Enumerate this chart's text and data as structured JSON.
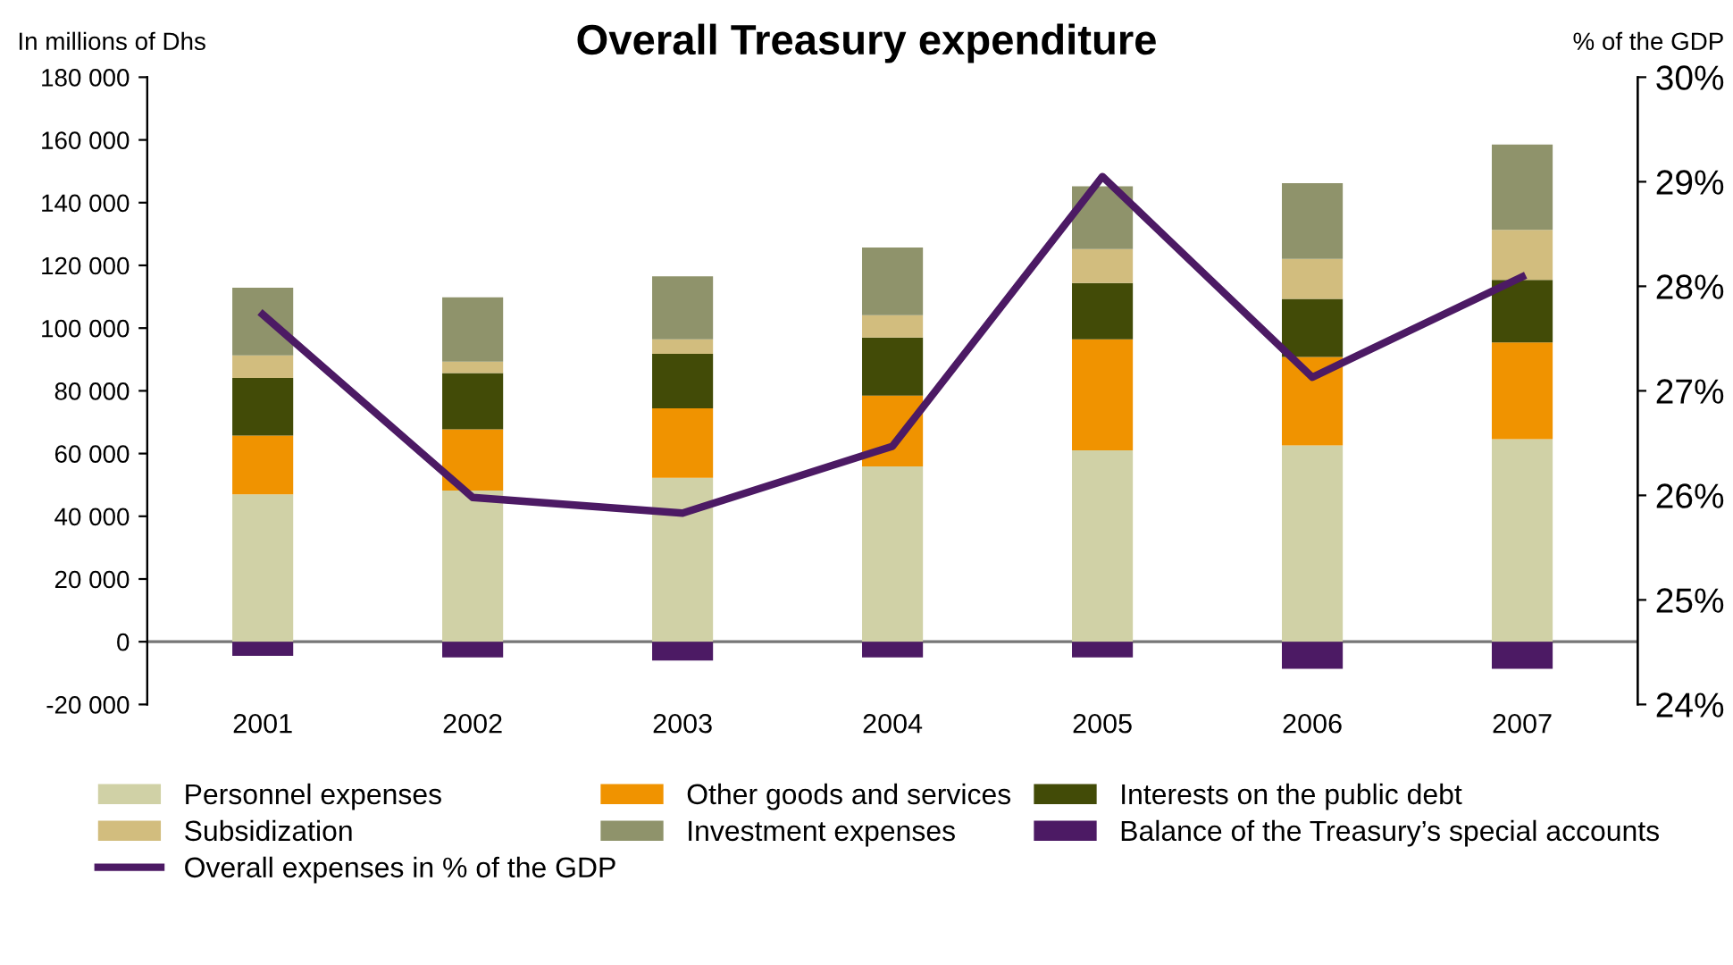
{
  "chart_data": {
    "type": "bar",
    "title": "Overall Treasury expenditure",
    "ylabel": "In millions of Dhs",
    "y2label": "% of the GDP",
    "categories": [
      "2001",
      "2002",
      "2003",
      "2004",
      "2005",
      "2006",
      "2007"
    ],
    "stacked": true,
    "legend": "bottom",
    "grid": false,
    "ref_lines": [
      {
        "axis": "y",
        "value": 0,
        "color": "#777777"
      }
    ],
    "series": [
      {
        "name": "Personnel expenses",
        "color": "#d0d1a6",
        "values": [
          47000,
          48200,
          52300,
          55900,
          61000,
          62600,
          64600
        ]
      },
      {
        "name": "Other goods and services",
        "color": "#f09300",
        "values": [
          18700,
          19500,
          22100,
          22600,
          35400,
          28200,
          30800
        ]
      },
      {
        "name": "Interests on the public debt",
        "color": "#424b07",
        "values": [
          18400,
          18000,
          17400,
          18500,
          18000,
          18500,
          20000
        ]
      },
      {
        "name": "Subsidization",
        "color": "#d2bd7e",
        "values": [
          7200,
          3600,
          4600,
          7100,
          10800,
          12800,
          15900
        ]
      },
      {
        "name": "Investment expenses",
        "color": "#8f936b",
        "values": [
          21600,
          20500,
          20100,
          21600,
          20000,
          24100,
          27200
        ]
      },
      {
        "name": "Balance of the Treasury’s special accounts",
        "color": "#4c1a64",
        "values": [
          -4500,
          -5000,
          -6000,
          -5000,
          -5000,
          -8600,
          -8600
        ]
      },
      {
        "name": "Overall expenses in % of the GDP",
        "color": "#4c1a64",
        "type": "line",
        "axis": "y2",
        "values": [
          27.73,
          25.98,
          25.83,
          26.47,
          29.05,
          27.13,
          28.09
        ]
      }
    ],
    "ylim": [
      -20000,
      180000
    ],
    "yticks": [
      {
        "value": -20000,
        "label": "-20 000"
      },
      0,
      {
        "value": 20000,
        "label": "20 000"
      },
      {
        "value": 40000,
        "label": "40 000"
      },
      {
        "value": 60000,
        "label": "60 000"
      },
      {
        "value": 80000,
        "label": "80 000"
      },
      {
        "value": 100000,
        "label": "100 000"
      },
      {
        "value": 120000,
        "label": "120 000"
      },
      {
        "value": 140000,
        "label": "140 000"
      },
      {
        "value": 160000,
        "label": "160 000"
      },
      {
        "value": 180000,
        "label": "180 000"
      }
    ],
    "y2lim": [
      24,
      30
    ],
    "y2ticks": [
      {
        "value": 24,
        "label": "24%"
      },
      {
        "value": 25,
        "label": "25%"
      },
      {
        "value": 26,
        "label": "26%"
      },
      {
        "value": 27,
        "label": "27%"
      },
      {
        "value": 28,
        "label": "28%"
      },
      {
        "value": 29,
        "label": "29%"
      },
      {
        "value": 30,
        "label": "30%"
      }
    ]
  }
}
